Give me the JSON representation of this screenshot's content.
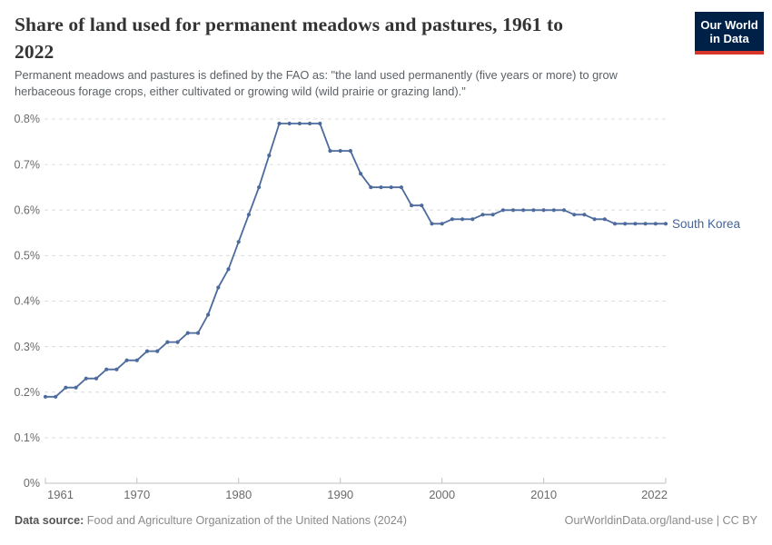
{
  "header": {
    "title": "Share of land used for permanent meadows and pastures, 1961 to 2022",
    "title_line1": "Share of land used for permanent meadows and pastures, 1961 to",
    "title_line2": "2022",
    "subtitle_line1": "Permanent meadows and pastures is defined by the FAO as: \"the land used permanently (five years or more) to grow",
    "subtitle_line2": "herbaceous forage crops, either cultivated or growing wild (wild prairie or grazing land).\"",
    "logo": {
      "line1": "Our World",
      "line2": "in Data"
    }
  },
  "colors": {
    "series": "#4c6b9c",
    "series_label": "#44639a",
    "grid": "#dcdcdc",
    "axis": "#c2c2c2",
    "tick_text": "#6b6b6b",
    "logo_bg": "#002147",
    "logo_red": "#d8352b"
  },
  "chart_data": {
    "type": "line",
    "title": "Share of land used for permanent meadows and pastures, 1961 to 2022",
    "xlabel": "",
    "ylabel": "",
    "grid": "dashed-horizontal",
    "legend_position": "end-of-line",
    "xlim": [
      1961,
      2022
    ],
    "ylim": [
      0,
      0.8
    ],
    "xticks": [
      1961,
      1970,
      1980,
      1990,
      2000,
      2010,
      2022
    ],
    "yticks": [
      {
        "value": 0,
        "label": "0%"
      },
      {
        "value": 0.1,
        "label": "0.1%"
      },
      {
        "value": 0.2,
        "label": "0.2%"
      },
      {
        "value": 0.3,
        "label": "0.3%"
      },
      {
        "value": 0.4,
        "label": "0.4%"
      },
      {
        "value": 0.5,
        "label": "0.5%"
      },
      {
        "value": 0.6,
        "label": "0.6%"
      },
      {
        "value": 0.7,
        "label": "0.7%"
      },
      {
        "value": 0.8,
        "label": "0.8%"
      }
    ],
    "series": [
      {
        "name": "South Korea",
        "x": [
          1961,
          1962,
          1963,
          1964,
          1965,
          1966,
          1967,
          1968,
          1969,
          1970,
          1971,
          1972,
          1973,
          1974,
          1975,
          1976,
          1977,
          1978,
          1979,
          1980,
          1981,
          1982,
          1983,
          1984,
          1985,
          1986,
          1987,
          1988,
          1989,
          1990,
          1991,
          1992,
          1993,
          1994,
          1995,
          1996,
          1997,
          1998,
          1999,
          2000,
          2001,
          2002,
          2003,
          2004,
          2005,
          2006,
          2007,
          2008,
          2009,
          2010,
          2011,
          2012,
          2013,
          2014,
          2015,
          2016,
          2017,
          2018,
          2019,
          2020,
          2021,
          2022
        ],
        "values": [
          0.19,
          0.19,
          0.21,
          0.21,
          0.23,
          0.23,
          0.25,
          0.25,
          0.27,
          0.27,
          0.29,
          0.29,
          0.31,
          0.31,
          0.33,
          0.33,
          0.37,
          0.43,
          0.47,
          0.53,
          0.59,
          0.65,
          0.72,
          0.79,
          0.79,
          0.79,
          0.79,
          0.79,
          0.73,
          0.73,
          0.73,
          0.68,
          0.65,
          0.65,
          0.65,
          0.65,
          0.61,
          0.61,
          0.57,
          0.57,
          0.58,
          0.58,
          0.58,
          0.59,
          0.59,
          0.6,
          0.6,
          0.6,
          0.6,
          0.6,
          0.6,
          0.6,
          0.59,
          0.59,
          0.58,
          0.58,
          0.57,
          0.57,
          0.57,
          0.57,
          0.57,
          0.57
        ]
      }
    ]
  },
  "footer": {
    "datasource_label": "Data source:",
    "datasource_text": "Food and Agriculture Organization of the United Nations (2024)",
    "link_text": "OurWorldinData.org/land-use | CC BY"
  }
}
